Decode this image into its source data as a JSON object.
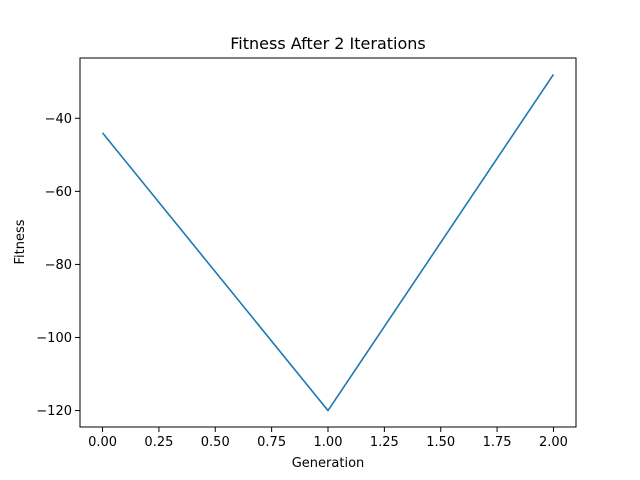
{
  "chart_data": {
    "type": "line",
    "title": "Fitness After 2 Iterations",
    "xlabel": "Generation",
    "ylabel": "Fitness",
    "xlim": [
      -0.1,
      2.1
    ],
    "ylim": [
      -124.5,
      -23.5
    ],
    "x_ticks": [
      0.0,
      0.25,
      0.5,
      0.75,
      1.0,
      1.25,
      1.5,
      1.75,
      2.0
    ],
    "x_tick_labels": [
      "0.00",
      "0.25",
      "0.50",
      "0.75",
      "1.00",
      "1.25",
      "1.50",
      "1.75",
      "2.00"
    ],
    "y_ticks": [
      -120,
      -100,
      -80,
      -60,
      -40
    ],
    "y_tick_labels": [
      "−120",
      "−100",
      "−80",
      "−60",
      "−40"
    ],
    "grid": false,
    "series": [
      {
        "x": [
          0,
          1,
          2
        ],
        "values": [
          -44,
          -120,
          -28
        ],
        "color": "#1f77b4"
      }
    ]
  }
}
